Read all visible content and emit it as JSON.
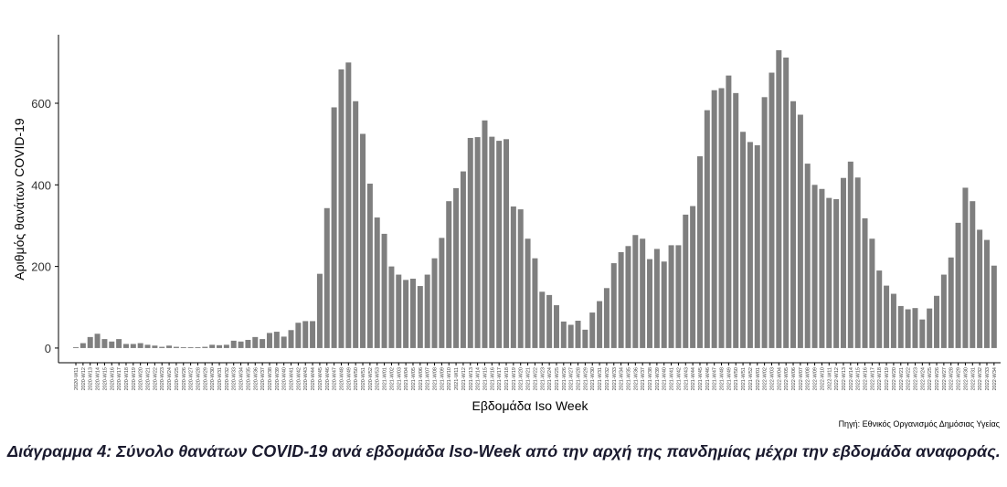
{
  "chart_data": {
    "type": "bar",
    "ylabel": "Αριθμός θανάτων COVID-19",
    "xlabel": "Εβδομάδα Iso Week",
    "source": "Πηγή: Εθνικός Οργανισμός Δημόσιας Υγείας",
    "caption": "Διάγραμμα 4: Σύνολο θανάτων COVID-19 ανά εβδομάδα Iso-Week από την αρχή της πανδημίας μέχρι την εβδομάδα αναφοράς.",
    "color": "#7f7f7f",
    "ylim": [
      -36,
      768
    ],
    "yticks": [
      0,
      200,
      400,
      600
    ],
    "categories": [
      "2020-W11",
      "2020-W12",
      "2020-W13",
      "2020-W14",
      "2020-W15",
      "2020-W16",
      "2020-W17",
      "2020-W18",
      "2020-W19",
      "2020-W20",
      "2020-W21",
      "2020-W22",
      "2020-W23",
      "2020-W24",
      "2020-W25",
      "2020-W26",
      "2020-W27",
      "2020-W28",
      "2020-W29",
      "2020-W30",
      "2020-W31",
      "2020-W32",
      "2020-W33",
      "2020-W34",
      "2020-W35",
      "2020-W36",
      "2020-W37",
      "2020-W38",
      "2020-W39",
      "2020-W40",
      "2020-W41",
      "2020-W42",
      "2020-W43",
      "2020-W44",
      "2020-W45",
      "2020-W46",
      "2020-W47",
      "2020-W48",
      "2020-W49",
      "2020-W50",
      "2020-W51",
      "2020-W52",
      "2020-W53",
      "2021-W01",
      "2021-W02",
      "2021-W03",
      "2021-W04",
      "2021-W05",
      "2021-W06",
      "2021-W07",
      "2021-W08",
      "2021-W09",
      "2021-W10",
      "2021-W11",
      "2021-W12",
      "2021-W13",
      "2021-W14",
      "2021-W15",
      "2021-W16",
      "2021-W17",
      "2021-W18",
      "2021-W19",
      "2021-W20",
      "2021-W21",
      "2021-W22",
      "2021-W23",
      "2021-W24",
      "2021-W25",
      "2021-W26",
      "2021-W27",
      "2021-W28",
      "2021-W29",
      "2021-W30",
      "2021-W31",
      "2021-W32",
      "2021-W33",
      "2021-W34",
      "2021-W35",
      "2021-W36",
      "2021-W37",
      "2021-W38",
      "2021-W39",
      "2021-W40",
      "2021-W41",
      "2021-W42",
      "2021-W43",
      "2021-W44",
      "2021-W45",
      "2021-W46",
      "2021-W47",
      "2021-W48",
      "2021-W49",
      "2021-W50",
      "2021-W51",
      "2021-W52",
      "2022-W01",
      "2022-W02",
      "2022-W03",
      "2022-W04",
      "2022-W05",
      "2022-W06",
      "2022-W07",
      "2022-W08",
      "2022-W09",
      "2022-W10",
      "2022-W11",
      "2022-W12",
      "2022-W13",
      "2022-W14",
      "2022-W15",
      "2022-W16",
      "2022-W17",
      "2022-W18",
      "2022-W19",
      "2022-W20",
      "2022-W21",
      "2022-W22",
      "2022-W23",
      "2022-W24",
      "2022-W25",
      "2022-W26",
      "2022-W27",
      "2022-W28",
      "2022-W29",
      "2022-W30",
      "2022-W31",
      "2022-W32",
      "2022-W33",
      "2022-W34"
    ],
    "values": [
      2,
      12,
      27,
      35,
      22,
      16,
      22,
      10,
      10,
      12,
      8,
      6,
      3,
      6,
      3,
      2,
      2,
      2,
      3,
      8,
      7,
      8,
      18,
      16,
      20,
      27,
      22,
      37,
      40,
      28,
      44,
      62,
      66,
      66,
      182,
      343,
      590,
      683,
      700,
      605,
      525,
      403,
      320,
      280,
      200,
      180,
      167,
      170,
      152,
      180,
      220,
      270,
      360,
      392,
      433,
      515,
      517,
      558,
      518,
      508,
      512,
      347,
      340,
      268,
      220,
      138,
      130,
      105,
      65,
      57,
      67,
      45,
      87,
      115,
      147,
      208,
      235,
      250,
      277,
      268,
      218,
      243,
      212,
      252,
      252,
      327,
      348,
      470,
      583,
      632,
      637,
      668,
      625,
      530,
      505,
      497,
      615,
      675,
      730,
      712,
      605,
      572,
      452,
      400,
      390,
      368,
      365,
      417,
      457,
      418,
      318,
      268,
      190,
      153,
      133,
      103,
      95,
      98,
      70,
      97,
      128,
      180,
      222,
      307,
      393,
      360,
      290,
      265,
      202
    ]
  }
}
